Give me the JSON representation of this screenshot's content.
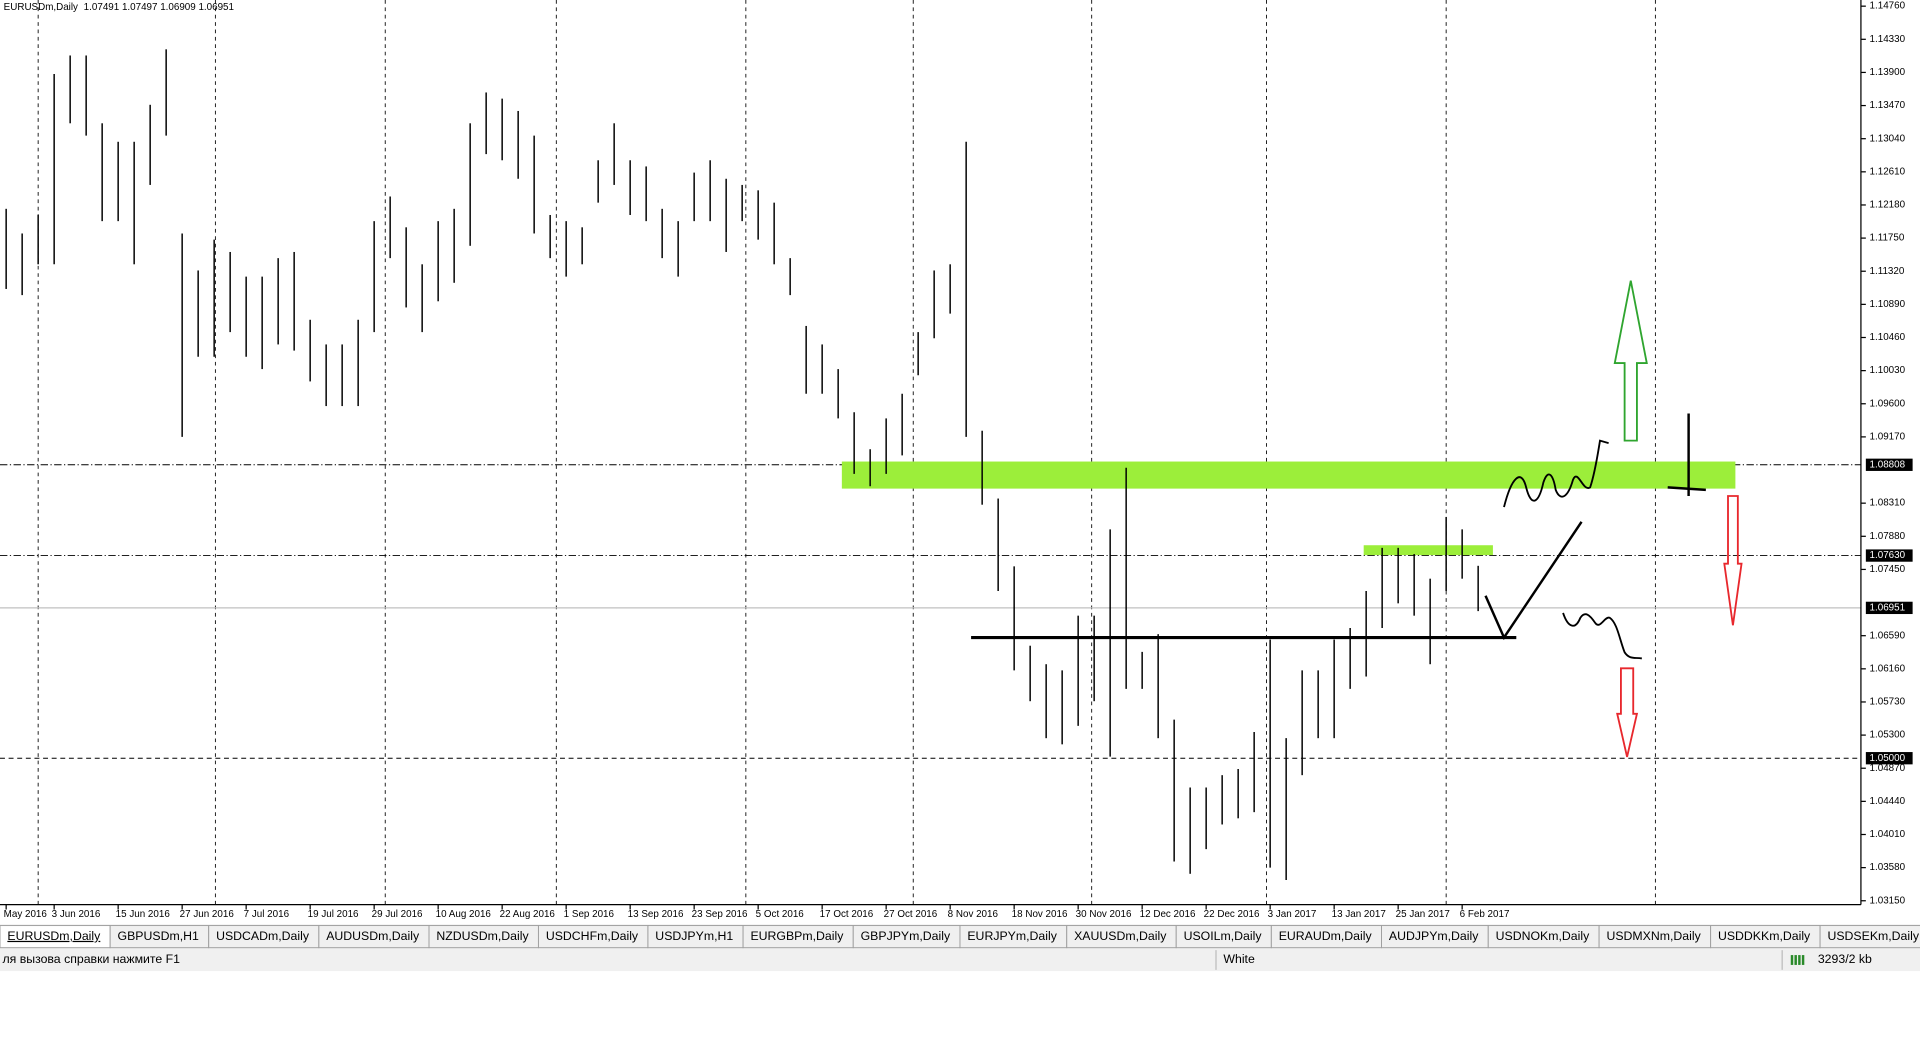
{
  "header": {
    "symbol": "EURUSDm,Daily",
    "quote": "1.07491 1.07497 1.06909 1.06951"
  },
  "chart_data": {
    "type": "bar-hl",
    "categories": [
      "May 2016",
      null,
      null,
      "3 Jun 2016",
      null,
      null,
      null,
      "15 Jun 2016",
      null,
      null,
      null,
      "27 Jun 2016",
      null,
      null,
      null,
      "7 Jul 2016",
      null,
      null,
      null,
      "19 Jul 2016",
      null,
      null,
      null,
      "29 Jul 2016",
      null,
      null,
      null,
      "10 Aug 2016",
      null,
      null,
      null,
      "22 Aug 2016",
      null,
      null,
      null,
      "1 Sep 2016",
      null,
      null,
      null,
      "13 Sep 2016",
      null,
      null,
      null,
      "23 Sep 2016",
      null,
      null,
      null,
      "5 Oct 2016",
      null,
      null,
      null,
      "17 Oct 2016",
      null,
      null,
      null,
      "27 Oct 2016",
      null,
      null,
      null,
      "8 Nov 2016",
      null,
      null,
      null,
      "18 Nov 2016",
      null,
      null,
      null,
      "30 Nov 2016",
      null,
      null,
      null,
      "12 Dec 2016",
      null,
      null,
      null,
      "22 Dec 2016",
      null,
      null,
      null,
      "3 Jan 2017",
      null,
      null,
      null,
      "13 Jan 2017",
      null,
      null,
      null,
      "25 Jan 2017",
      null,
      null,
      null,
      "6 Feb 2017",
      null
    ],
    "high": [
      1.1213,
      1.1181,
      1.1205,
      1.1388,
      1.1412,
      1.1412,
      1.1324,
      1.13,
      1.13,
      1.1348,
      1.142,
      1.1181,
      1.1133,
      1.1173,
      1.1157,
      1.1125,
      1.1125,
      1.1149,
      1.1157,
      1.1069,
      1.1037,
      1.1037,
      1.1069,
      1.1197,
      1.1229,
      1.1189,
      1.1141,
      1.1197,
      1.1213,
      1.1324,
      1.1364,
      1.1356,
      1.134,
      1.1308,
      1.1205,
      1.1197,
      1.1189,
      1.1276,
      1.1324,
      1.1276,
      1.1268,
      1.1213,
      1.1197,
      1.126,
      1.1276,
      1.1252,
      1.1244,
      1.1237,
      1.1221,
      1.1149,
      1.1061,
      1.1037,
      1.1005,
      1.0949,
      1.0901,
      1.0941,
      1.0973,
      1.1053,
      1.1133,
      1.1141,
      1.13,
      1.0925,
      1.0837,
      1.0749,
      1.0646,
      1.0622,
      1.0614,
      1.0685,
      1.0685,
      1.0797,
      1.0877,
      1.0638,
      1.0661,
      1.055,
      1.0462,
      1.0462,
      1.0478,
      1.0486,
      1.0534,
      1.0654,
      1.0526,
      1.0614,
      1.0614,
      1.0654,
      1.0669,
      1.0717,
      1.0773,
      1.0773,
      1.0765,
      1.0733,
      1.0813,
      1.0797,
      1.07497
    ],
    "low": [
      1.1109,
      1.1101,
      1.1141,
      1.1141,
      1.1324,
      1.1308,
      1.1197,
      1.1197,
      1.1141,
      1.1244,
      1.1308,
      1.0917,
      1.1021,
      1.1021,
      1.1053,
      1.1021,
      1.1005,
      1.1037,
      1.1029,
      1.0989,
      1.0957,
      1.0957,
      1.0957,
      1.1053,
      1.1149,
      1.1085,
      1.1053,
      1.1093,
      1.1117,
      1.1165,
      1.1284,
      1.1276,
      1.1252,
      1.1181,
      1.1149,
      1.1125,
      1.1141,
      1.1221,
      1.1244,
      1.1205,
      1.1197,
      1.1149,
      1.1125,
      1.1197,
      1.1197,
      1.1157,
      1.1197,
      1.1173,
      1.1141,
      1.1101,
      1.0973,
      1.0973,
      1.0941,
      1.0869,
      1.0853,
      1.0869,
      1.0893,
      1.0997,
      1.1045,
      1.1077,
      1.0917,
      1.0829,
      1.0717,
      1.0614,
      1.0574,
      1.0526,
      1.0518,
      1.0542,
      1.0574,
      1.0502,
      1.059,
      1.059,
      1.0526,
      1.0366,
      1.035,
      1.0382,
      1.0414,
      1.0422,
      1.043,
      1.0358,
      1.0342,
      1.0478,
      1.0526,
      1.0526,
      1.059,
      1.0606,
      1.0669,
      1.0701,
      1.0685,
      1.0622,
      1.0717,
      1.0733,
      1.06909
    ],
    "color": "#000000",
    "ylim": [
      1.031,
      1.1484
    ],
    "yticks": [
      {
        "value": 1.1476,
        "label": "1.14760"
      },
      {
        "value": 1.1433,
        "label": "1.14330"
      },
      {
        "value": 1.139,
        "label": "1.13900"
      },
      {
        "value": 1.1347,
        "label": "1.13470"
      },
      {
        "value": 1.1304,
        "label": "1.13040"
      },
      {
        "value": 1.1261,
        "label": "1.12610"
      },
      {
        "value": 1.1218,
        "label": "1.12180"
      },
      {
        "value": 1.1175,
        "label": "1.11750"
      },
      {
        "value": 1.1132,
        "label": "1.11320"
      },
      {
        "value": 1.1089,
        "label": "1.10890"
      },
      {
        "value": 1.1046,
        "label": "1.10460"
      },
      {
        "value": 1.1003,
        "label": "1.10030"
      },
      {
        "value": 1.096,
        "label": "1.09600"
      },
      {
        "value": 1.0917,
        "label": "1.09170"
      },
      {
        "value": 1.0831,
        "label": "1.08310"
      },
      {
        "value": 1.0788,
        "label": "1.07880"
      },
      {
        "value": 1.0745,
        "label": "1.07450"
      },
      {
        "value": 1.0659,
        "label": "1.06590"
      },
      {
        "value": 1.0616,
        "label": "1.06160"
      },
      {
        "value": 1.0573,
        "label": "1.05730"
      },
      {
        "value": 1.053,
        "label": "1.05300"
      },
      {
        "value": 1.0487,
        "label": "1.04870"
      },
      {
        "value": 1.0444,
        "label": "1.04440"
      },
      {
        "value": 1.0401,
        "label": "1.04010"
      },
      {
        "value": 1.0358,
        "label": "1.03580"
      },
      {
        "value": 1.0315,
        "label": "1.03150"
      }
    ],
    "levels": [
      {
        "value": 1.08808,
        "label": "1.08808"
      },
      {
        "value": 1.0763,
        "label": "1.07630"
      },
      {
        "value": 1.05,
        "label": "1.05000"
      }
    ],
    "bid": {
      "value": 1.06951,
      "label": "1.06951"
    }
  },
  "tabs": [
    "EURUSDm,Daily",
    "GBPUSDm,H1",
    "USDCADm,Daily",
    "AUDUSDm,Daily",
    "NZDUSDm,Daily",
    "USDCHFm,Daily",
    "USDJPYm,H1",
    "EURGBPm,Daily",
    "GBPJPYm,Daily",
    "EURJPYm,Daily",
    "XAUUSDm,Daily",
    "USOILm,Daily",
    "EURAUDm,Daily",
    "AUDJPYm,Daily",
    "USDNOKm,Daily",
    "USDMXNm,Daily",
    "USDDKKm,Daily",
    "USDSEKm,Daily"
  ],
  "status": {
    "help": "ля вызова справки нажмите F1",
    "profile": "White",
    "traffic": "3293/2 kb"
  }
}
